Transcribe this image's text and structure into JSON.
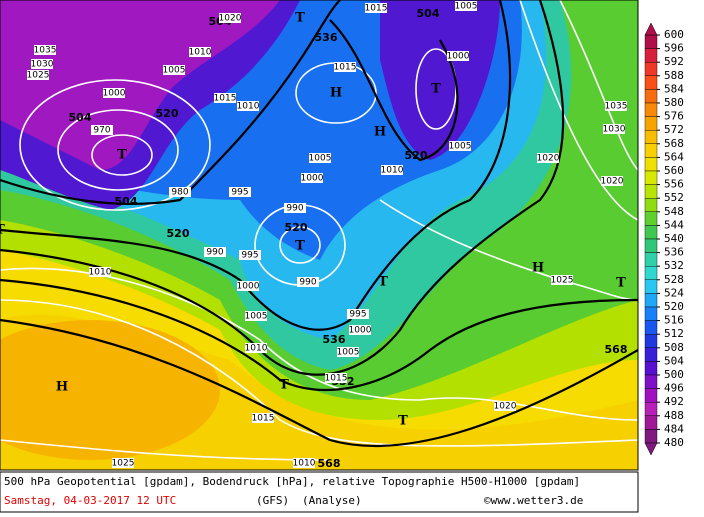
{
  "map_labels": {
    "geopotential": [
      504,
      504,
      536,
      520,
      504,
      504,
      520,
      520,
      520,
      536,
      552,
      568,
      568
    ],
    "pressure_centers": [
      "T",
      "T",
      "T",
      "T",
      "T",
      "T",
      "T",
      "T",
      "T",
      "H",
      "H",
      "H",
      "H"
    ],
    "isobars": [
      1035,
      1030,
      1025,
      1000,
      970,
      1010,
      1005,
      1015,
      1010,
      1015,
      1000,
      1005,
      1000,
      995,
      990,
      980,
      990,
      995,
      990,
      1000,
      1005,
      995,
      1000,
      1005,
      1010,
      1010,
      1015,
      1015,
      1010,
      1025,
      1020,
      1025,
      1020,
      1020,
      1030,
      1035,
      1010,
      1005,
      1015,
      1005,
      1020
    ]
  },
  "legend": {
    "levels": [
      600,
      596,
      592,
      588,
      584,
      580,
      576,
      572,
      568,
      564,
      560,
      556,
      552,
      548,
      544,
      540,
      536,
      532,
      528,
      524,
      520,
      516,
      512,
      508,
      504,
      500,
      496,
      492,
      488,
      484,
      480
    ],
    "colors": [
      "#b0104a",
      "#d8203c",
      "#f03828",
      "#f85018",
      "#f86c10",
      "#f88a08",
      "#f8a400",
      "#f8bc00",
      "#f8d000",
      "#f0e000",
      "#d8e800",
      "#b8e400",
      "#90dc10",
      "#60d030",
      "#40c850",
      "#30c878",
      "#30d0a8",
      "#30d8d0",
      "#28c8f0",
      "#20a8f8",
      "#1880f8",
      "#1858f0",
      "#2038e0",
      "#3820d8",
      "#5810d0",
      "#8010c8",
      "#a010c0",
      "#b820b8",
      "#a01898",
      "#801880"
    ]
  },
  "footer": {
    "description": "500 hPa Geopotential [gpdam], Bodendruck [hPa], relative Topographie H500-H1000 [gpdam]",
    "date": "Samstag, 04-03-2017  12 UTC",
    "model": "(GFS)",
    "run": "(Analyse)",
    "credit": "©www.wetter3.de"
  }
}
